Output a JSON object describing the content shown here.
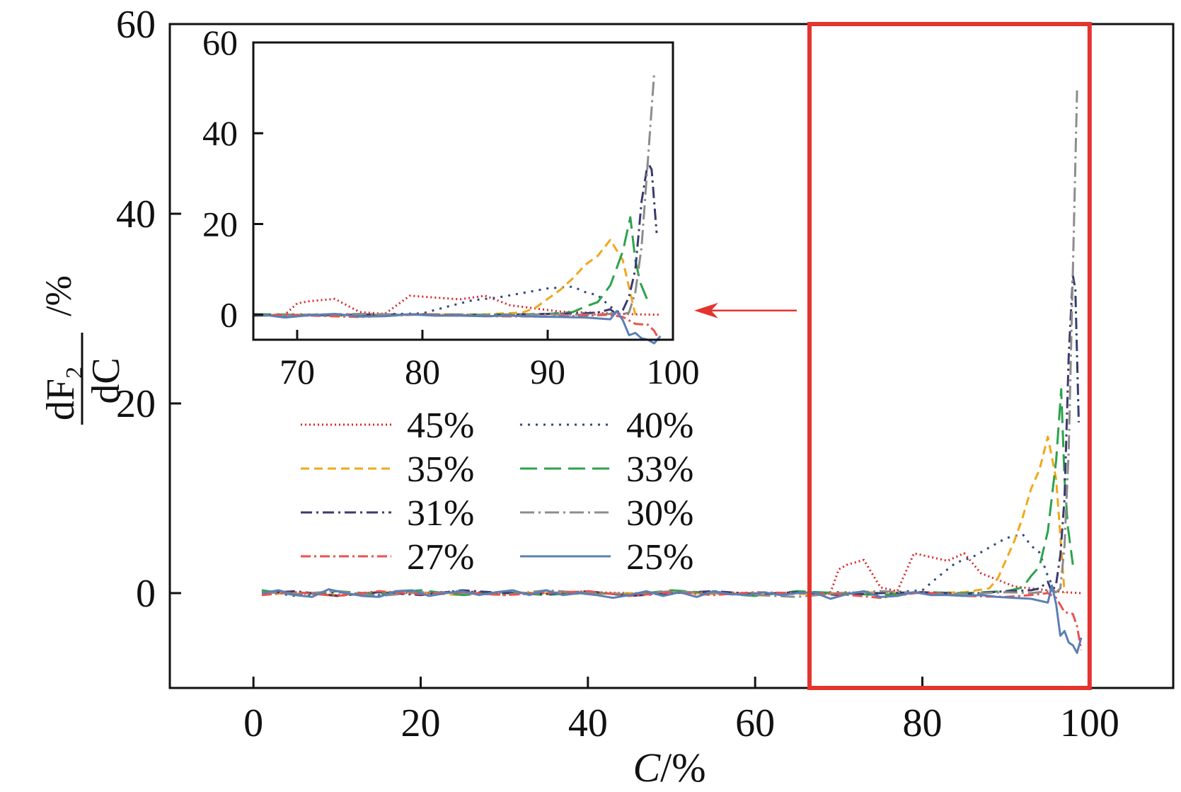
{
  "chart_data": {
    "type": "line",
    "xlabel_var": "C",
    "xlabel_unit": "/%",
    "ylabel_num": "dF",
    "ylabel_sub": "2",
    "ylabel_den": "dC",
    "ylabel_unit": "/%",
    "xlim": [
      -10,
      110
    ],
    "ylim": [
      -10,
      60
    ],
    "xticks": [
      0,
      20,
      40,
      60,
      80,
      100
    ],
    "yticks": [
      0,
      20,
      40,
      60
    ],
    "highlight_box": {
      "x_range": [
        66.5,
        100
      ],
      "y_range": [
        -10,
        60
      ],
      "color": "#e3342f"
    },
    "inset": {
      "xlim": [
        66.5,
        100
      ],
      "ylim": [
        -5.5,
        60
      ],
      "xticks": [
        70,
        80,
        90,
        100
      ],
      "yticks": [
        0,
        20,
        40,
        60
      ]
    },
    "series": [
      {
        "name": "45%",
        "color": "#d62728",
        "dash": "2 4",
        "x": [
          1,
          5,
          10,
          15,
          20,
          25,
          30,
          35,
          40,
          45,
          50,
          55,
          60,
          64,
          67,
          68,
          69,
          70,
          71,
          73,
          75,
          77,
          79,
          81,
          83,
          85,
          87,
          89,
          91,
          93,
          95,
          97,
          99
        ],
        "y": [
          0.2,
          0,
          -0.2,
          0.1,
          0,
          0.1,
          0,
          0,
          0.1,
          0,
          0,
          0.1,
          0,
          0,
          0,
          0,
          0,
          2.5,
          3,
          3.5,
          0.6,
          0.2,
          4.2,
          3.8,
          3.4,
          4.2,
          2.1,
          1.4,
          0.7,
          0.5,
          0.3,
          0.1,
          0
        ]
      },
      {
        "name": "40%",
        "color": "#2c4a7c",
        "dash": "3 8",
        "x": [
          1,
          5,
          10,
          15,
          20,
          25,
          30,
          35,
          40,
          45,
          50,
          55,
          60,
          65,
          70,
          75,
          80,
          82,
          84,
          86,
          88,
          90,
          91,
          92,
          93,
          94,
          95,
          96
        ],
        "y": [
          0.2,
          -0.3,
          0.1,
          -0.2,
          0,
          0.2,
          -0.1,
          0,
          0.1,
          -0.2,
          0,
          0.1,
          -0.1,
          0,
          0.1,
          0,
          0.3,
          1.8,
          3.2,
          3.8,
          4.8,
          5.8,
          6,
          6.2,
          5,
          4.3,
          1.8,
          0
        ]
      },
      {
        "name": "35%",
        "color": "#f0a81c",
        "dash": "12 7",
        "x": [
          1,
          5,
          10,
          15,
          20,
          25,
          30,
          35,
          40,
          45,
          50,
          55,
          60,
          65,
          70,
          75,
          80,
          85,
          88,
          89,
          90,
          91,
          92,
          93,
          94,
          95,
          96,
          97
        ],
        "y": [
          -0.2,
          0.1,
          -0.2,
          0.1,
          0,
          -0.2,
          0.1,
          0,
          -0.1,
          0,
          0.1,
          -0.1,
          0,
          -0.1,
          0,
          0.1,
          0,
          0.1,
          0.5,
          1.5,
          3.5,
          5.5,
          8,
          11,
          13,
          16.5,
          12,
          0
        ]
      },
      {
        "name": "33%",
        "color": "#2ca24b",
        "dash": "24 10",
        "x": [
          1,
          5,
          10,
          15,
          20,
          25,
          30,
          35,
          40,
          45,
          50,
          55,
          60,
          65,
          70,
          75,
          80,
          85,
          90,
          92,
          93,
          94,
          95,
          96,
          96.6,
          97,
          97.4,
          98
        ],
        "y": [
          0.3,
          -0.2,
          0.2,
          -0.1,
          0.3,
          -0.2,
          0.1,
          -0.2,
          0.1,
          -0.2,
          0.3,
          0,
          -0.3,
          0.2,
          0,
          -0.2,
          0.1,
          0,
          0.2,
          0.6,
          1.8,
          2.8,
          6.5,
          14,
          21.5,
          12,
          7,
          3
        ]
      },
      {
        "name": "31%",
        "color": "#3b3a6e",
        "dash": "16 6 3 6",
        "x": [
          1,
          5,
          10,
          15,
          20,
          25,
          30,
          35,
          40,
          45,
          50,
          55,
          60,
          65,
          70,
          75,
          80,
          85,
          90,
          93,
          94,
          95,
          95.5,
          96,
          96.5,
          97,
          97.5,
          98,
          98.3,
          98.7
        ],
        "y": [
          0,
          0.2,
          -0.3,
          0.1,
          -0.2,
          0.3,
          0,
          -0.1,
          0.2,
          -0.3,
          0,
          0.2,
          -0.1,
          0.1,
          -0.2,
          0,
          0.1,
          -0.1,
          0.2,
          0.3,
          0.5,
          1.2,
          0.1,
          1,
          4,
          10,
          25,
          33.5,
          32,
          18
        ]
      },
      {
        "name": "30%",
        "color": "#8c8c8c",
        "dash": "20 6 3 6",
        "x": [
          1,
          5,
          10,
          15,
          20,
          25,
          30,
          35,
          40,
          45,
          50,
          55,
          60,
          65,
          70,
          75,
          80,
          85,
          90,
          93,
          95,
          96,
          96.5,
          97,
          97.5,
          98,
          98.5
        ],
        "y": [
          0.1,
          -0.1,
          0.2,
          -0.3,
          0.1,
          0,
          -0.2,
          0.3,
          0,
          -0.1,
          0.2,
          0,
          -0.2,
          -0.4,
          0,
          0.2,
          0,
          -0.1,
          0.1,
          0,
          0.2,
          0.1,
          0.5,
          5,
          15,
          34,
          53
        ]
      },
      {
        "name": "27%",
        "color": "#e8534f",
        "dash": "14 5 3 5",
        "x": [
          1,
          5,
          10,
          15,
          20,
          25,
          30,
          35,
          40,
          45,
          50,
          55,
          60,
          65,
          70,
          75,
          80,
          85,
          90,
          93,
          95,
          96,
          97,
          98,
          98.5,
          99
        ],
        "y": [
          -0.2,
          0.1,
          -0.3,
          0.2,
          -0.1,
          0.1,
          -0.2,
          0,
          0.2,
          -0.3,
          0.1,
          -0.2,
          0.1,
          0,
          -0.1,
          -0.5,
          0.1,
          -0.3,
          -0.4,
          -0.2,
          0,
          -0.5,
          -2,
          -2.2,
          -3.5,
          -6
        ]
      },
      {
        "name": "25%",
        "color": "#5b7fb5",
        "dash": "",
        "x": [
          1,
          3,
          5,
          7,
          9,
          11,
          13,
          15,
          17,
          19,
          21,
          23,
          25,
          27,
          29,
          31,
          33,
          35,
          37,
          39,
          41,
          43,
          45,
          47,
          49,
          51,
          53,
          55,
          57,
          59,
          61,
          63,
          65,
          67,
          69,
          71,
          73,
          75,
          77,
          79,
          81,
          83,
          85,
          87,
          89,
          91,
          93,
          94,
          95,
          95.5,
          96,
          96.5,
          97,
          97.5,
          98,
          98.5,
          99
        ],
        "y": [
          0,
          0.3,
          -0.2,
          -0.4,
          0.4,
          0,
          -0.3,
          -0.4,
          0.2,
          0.3,
          -0.3,
          0,
          0.2,
          -0.2,
          0.1,
          0.3,
          -0.2,
          0.3,
          -0.2,
          0,
          -0.2,
          -0.5,
          -0.2,
          0.2,
          -0.3,
          0.1,
          -0.4,
          0.2,
          -0.1,
          -0.2,
          0.1,
          -0.2,
          0,
          0.1,
          -0.6,
          -0.1,
          0.2,
          -0.4,
          -0.3,
          0.1,
          -0.2,
          -0.2,
          -0.3,
          -0.2,
          -0.4,
          -0.5,
          -0.6,
          -0.8,
          -1,
          0.8,
          -1.2,
          -4.5,
          -4,
          -5.2,
          -5.5,
          -6.3,
          -4.7
        ]
      }
    ]
  }
}
